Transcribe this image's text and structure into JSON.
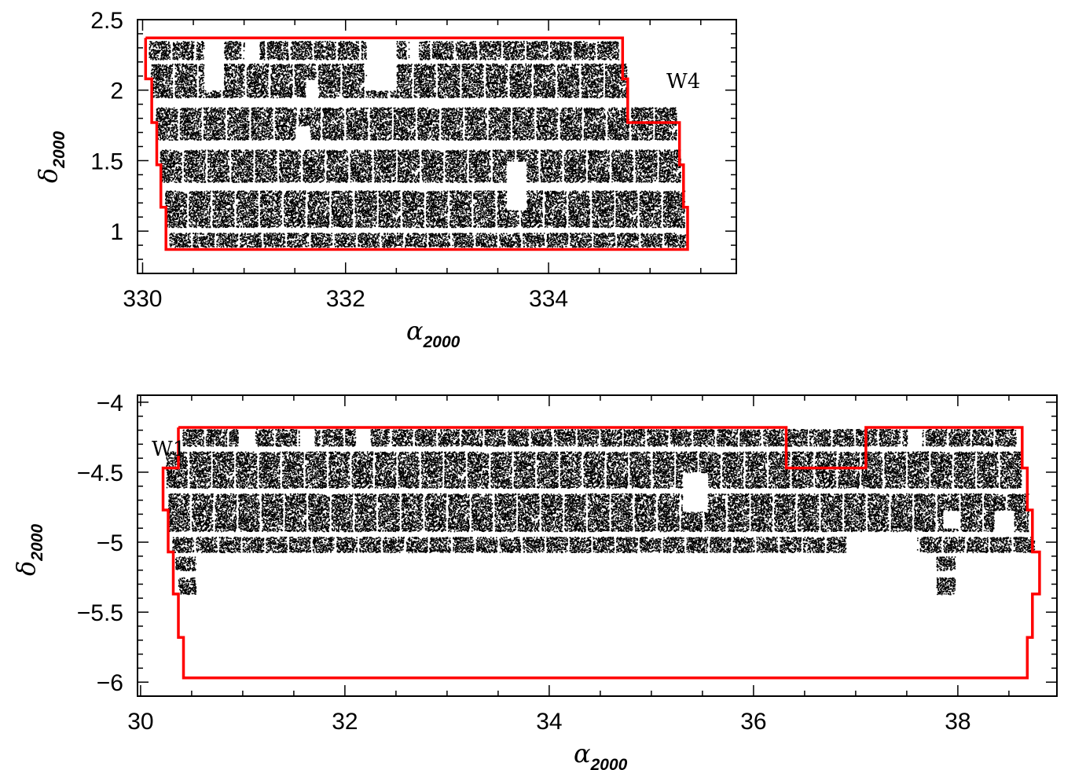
{
  "chart_data": [
    {
      "type": "scatter",
      "field_label": "W4",
      "xlabel": {
        "symbol": "α",
        "subscript": "2000"
      },
      "ylabel": {
        "symbol": "δ",
        "subscript": "2000"
      },
      "xlim": [
        329.95,
        335.85
      ],
      "ylim": [
        0.7,
        2.5
      ],
      "xticks_major": [
        330,
        332,
        334
      ],
      "xticks_major_labels": [
        "330",
        "332",
        "334"
      ],
      "xticks_minor_step": 0.5,
      "yticks_major": [
        1,
        1.5,
        2,
        2.5
      ],
      "yticks_major_labels": [
        "1",
        "1.5",
        "2",
        "2.5"
      ],
      "yticks_minor_step": 0.1,
      "boundary_color": "#ff0000",
      "point_color": "#000000",
      "boundary": [
        [
          330.03,
          2.37
        ],
        [
          334.73,
          2.37
        ],
        [
          334.73,
          2.08
        ],
        [
          334.78,
          2.08
        ],
        [
          334.78,
          1.77
        ],
        [
          335.29,
          1.77
        ],
        [
          335.29,
          1.47
        ],
        [
          335.33,
          1.47
        ],
        [
          335.33,
          1.17
        ],
        [
          335.37,
          1.17
        ],
        [
          335.37,
          0.87
        ],
        [
          330.23,
          0.87
        ],
        [
          330.23,
          1.17
        ],
        [
          330.18,
          1.17
        ],
        [
          330.18,
          1.47
        ],
        [
          330.14,
          1.47
        ],
        [
          330.14,
          1.77
        ],
        [
          330.09,
          1.77
        ],
        [
          330.09,
          2.08
        ],
        [
          330.03,
          2.08
        ],
        [
          330.03,
          2.37
        ]
      ],
      "pointing_rows": [
        {
          "dec_top": 2.35,
          "dec_bottom": 2.22,
          "ra_min": 330.05,
          "ra_max": 334.7,
          "columns": 20
        },
        {
          "dec_top": 2.19,
          "dec_bottom": 1.95,
          "ra_min": 330.07,
          "ra_max": 334.78,
          "columns": 20
        },
        {
          "dec_top": 1.88,
          "dec_bottom": 1.65,
          "ra_min": 330.12,
          "ra_max": 335.27,
          "columns": 22
        },
        {
          "dec_top": 1.58,
          "dec_bottom": 1.35,
          "ra_min": 330.16,
          "ra_max": 335.31,
          "columns": 22
        },
        {
          "dec_top": 1.29,
          "dec_bottom": 1.03,
          "ra_min": 330.21,
          "ra_max": 335.35,
          "columns": 22
        },
        {
          "dec_top": 0.99,
          "dec_bottom": 0.89,
          "ra_min": 330.25,
          "ra_max": 335.36,
          "columns": 22
        }
      ],
      "holes": [
        {
          "ra_min": 330.6,
          "ra_max": 330.8,
          "dec_min": 2.0,
          "dec_max": 2.36
        },
        {
          "ra_min": 331.0,
          "ra_max": 331.15,
          "dec_min": 2.22,
          "dec_max": 2.36
        },
        {
          "ra_min": 331.6,
          "ra_max": 331.72,
          "dec_min": 1.93,
          "dec_max": 2.08
        },
        {
          "ra_min": 331.5,
          "ra_max": 331.65,
          "dec_min": 1.6,
          "dec_max": 1.75
        },
        {
          "ra_min": 332.2,
          "ra_max": 332.5,
          "dec_min": 2.0,
          "dec_max": 2.36
        },
        {
          "ra_min": 332.62,
          "ra_max": 332.72,
          "dec_min": 2.22,
          "dec_max": 2.36
        },
        {
          "ra_min": 333.58,
          "ra_max": 333.78,
          "dec_min": 1.15,
          "dec_max": 1.5
        }
      ]
    },
    {
      "type": "scatter",
      "field_label": "W1",
      "xlabel": {
        "symbol": "α",
        "subscript": "2000"
      },
      "ylabel": {
        "symbol": "δ",
        "subscript": "2000"
      },
      "xlim": [
        29.97,
        38.97
      ],
      "ylim": [
        -6.1,
        -3.95
      ],
      "xticks_major": [
        30,
        32,
        34,
        36,
        38
      ],
      "xticks_major_labels": [
        "30",
        "32",
        "34",
        "36",
        "38"
      ],
      "xticks_minor_step": 0.5,
      "yticks_major": [
        -6,
        -5.5,
        -5,
        -4.5,
        -4
      ],
      "yticks_major_labels": [
        "−6",
        "−5.5",
        "−5",
        "−4.5",
        "−4"
      ],
      "yticks_minor_step": 0.1,
      "boundary_color": "#ff0000",
      "point_color": "#000000",
      "boundary": [
        [
          30.37,
          -4.18
        ],
        [
          36.32,
          -4.18
        ],
        [
          36.32,
          -4.47
        ],
        [
          37.1,
          -4.47
        ],
        [
          37.1,
          -4.18
        ],
        [
          38.63,
          -4.18
        ],
        [
          38.63,
          -4.47
        ],
        [
          38.68,
          -4.47
        ],
        [
          38.68,
          -4.77
        ],
        [
          38.73,
          -4.77
        ],
        [
          38.73,
          -5.07
        ],
        [
          38.8,
          -5.07
        ],
        [
          38.8,
          -5.37
        ],
        [
          38.73,
          -5.37
        ],
        [
          38.73,
          -5.68
        ],
        [
          38.68,
          -5.68
        ],
        [
          38.68,
          -5.97
        ],
        [
          30.42,
          -5.97
        ],
        [
          30.42,
          -5.68
        ],
        [
          30.37,
          -5.68
        ],
        [
          30.37,
          -5.37
        ],
        [
          30.32,
          -5.37
        ],
        [
          30.32,
          -5.07
        ],
        [
          30.27,
          -5.07
        ],
        [
          30.27,
          -4.77
        ],
        [
          30.22,
          -4.77
        ],
        [
          30.22,
          -4.47
        ],
        [
          30.37,
          -4.47
        ],
        [
          30.37,
          -4.18
        ]
      ],
      "pointing_rows": [
        {
          "dec_top": -4.19,
          "dec_bottom": -4.31,
          "ra_min": 30.4,
          "ra_max": 38.58,
          "columns": 36
        },
        {
          "dec_top": -4.35,
          "dec_bottom": -4.61,
          "ra_min": 30.24,
          "ra_max": 38.63,
          "columns": 37
        },
        {
          "dec_top": -4.65,
          "dec_bottom": -4.92,
          "ra_min": 30.26,
          "ra_max": 38.7,
          "columns": 37
        },
        {
          "dec_top": -4.96,
          "dec_bottom": -5.07,
          "ra_min": 30.3,
          "ra_max": 38.76,
          "columns": 37
        },
        {
          "dec_top": -5.1,
          "dec_bottom": -5.2,
          "ra_min": 30.33,
          "ra_max": 30.55,
          "columns": 1
        },
        {
          "dec_top": -5.25,
          "dec_bottom": -5.37,
          "ra_min": 30.36,
          "ra_max": 30.55,
          "columns": 1
        },
        {
          "dec_top": -5.1,
          "dec_bottom": -5.2,
          "ra_min": 37.78,
          "ra_max": 37.98,
          "columns": 1
        },
        {
          "dec_top": -5.25,
          "dec_bottom": -5.37,
          "ra_min": 37.78,
          "ra_max": 37.98,
          "columns": 1
        }
      ],
      "holes": [
        {
          "ra_min": 30.95,
          "ra_max": 31.12,
          "dec_min": -4.32,
          "dec_max": -4.18
        },
        {
          "ra_min": 31.55,
          "ra_max": 31.7,
          "dec_min": -4.32,
          "dec_max": -4.18
        },
        {
          "ra_min": 32.1,
          "ra_max": 32.25,
          "dec_min": -4.32,
          "dec_max": -4.18
        },
        {
          "ra_min": 35.3,
          "ra_max": 35.55,
          "dec_min": -4.78,
          "dec_max": -4.5
        },
        {
          "ra_min": 37.5,
          "ra_max": 37.65,
          "dec_min": -4.32,
          "dec_max": -4.18
        },
        {
          "ra_min": 37.85,
          "ra_max": 38.0,
          "dec_min": -4.9,
          "dec_max": -4.77
        },
        {
          "ra_min": 38.35,
          "ra_max": 38.55,
          "dec_min": -4.92,
          "dec_max": -4.77
        },
        {
          "ra_min": 36.9,
          "ra_max": 37.15,
          "dec_min": -5.08,
          "dec_max": -4.95
        },
        {
          "ra_min": 37.15,
          "ra_max": 37.6,
          "dec_min": -5.08,
          "dec_max": -4.95
        }
      ]
    }
  ]
}
